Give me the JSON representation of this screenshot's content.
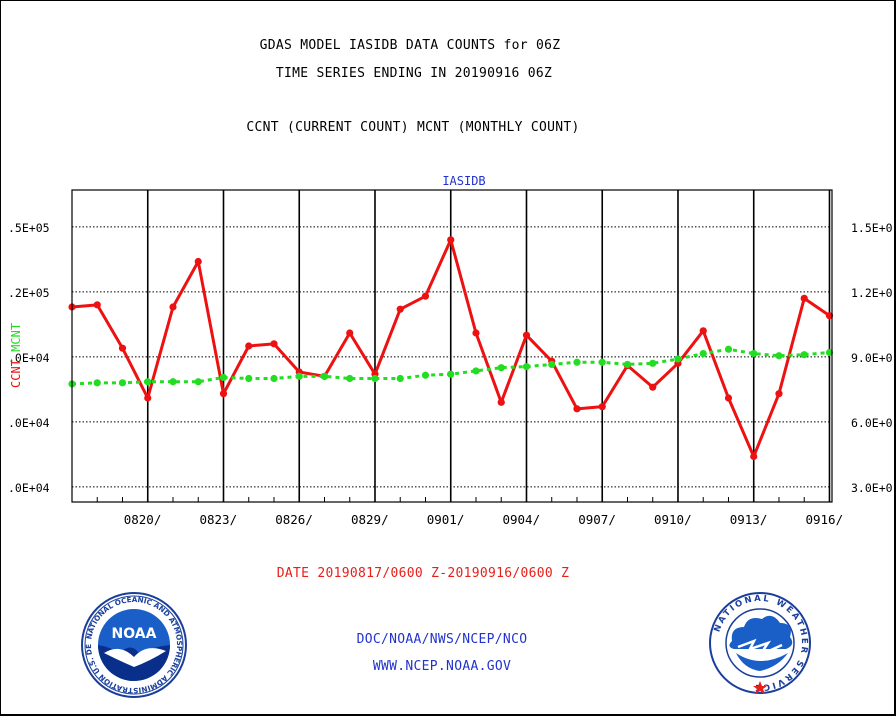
{
  "header": {
    "title_line1": "GDAS MODEL IASIDB DATA COUNTS for 06Z",
    "title_line2": "TIME SERIES ENDING IN 20190916 06Z",
    "subtitle": "CCNT (CURRENT COUNT) MCNT (MONTHLY COUNT)"
  },
  "footer": {
    "date_range": "DATE 20190817/0600 Z-20190916/0600 Z",
    "doc": "DOC/NOAA/NWS/NCEP/NCO",
    "website": "WWW.NCEP.NOAA.GOV"
  },
  "colors": {
    "ccnt": "#ee1111",
    "mcnt": "#22dd22",
    "panel_title": "#2233cc",
    "text": "#000000"
  },
  "logos": {
    "noaa": "NOAA",
    "noaa_ring": "NATIONAL OCEANIC AND ATMOSPHERIC ADMINISTRATION U.S. DEPARTMENT OF COMMERCE",
    "nws_ring": "NATIONAL WEATHER SERVICE"
  },
  "chart_data": {
    "type": "line",
    "panel_title": "IASIDB",
    "left_axis_label_ccnt": "CCNT",
    "left_axis_label_mcnt": "MCNT",
    "left_ticks": [
      ".0E+04",
      ".0E+04",
      ".2E+05",
      ".5E+05"
    ],
    "left_tick_values": [
      30000,
      60000,
      120000,
      150000
    ],
    "left_tick_extra": [
      ".0E+04"
    ],
    "right_ticks": [
      "3.0E+0",
      "6.0E+0",
      "9.0E+0",
      "1.2E+0",
      "1.5E+0"
    ],
    "right_tick_values": [
      30000,
      60000,
      90000,
      120000,
      150000
    ],
    "ylim": [
      23000,
      167000
    ],
    "x_start": "0817",
    "x_end": "0916",
    "x_tick_labels": [
      "0820/",
      "0823/",
      "0826/",
      "0829/",
      "0901/",
      "0904/",
      "0907/",
      "0910/",
      "0913/",
      "0916/"
    ],
    "x_tick_days": [
      3,
      6,
      9,
      12,
      15,
      18,
      21,
      24,
      27,
      30
    ],
    "xlim_days": [
      0,
      30.1
    ],
    "grid": true,
    "series": [
      {
        "name": "CCNT",
        "days": [
          0,
          1,
          2,
          3,
          4,
          5,
          6,
          7,
          8,
          9,
          10,
          11,
          12,
          13,
          14,
          15,
          16,
          17,
          18,
          19,
          20,
          21,
          22,
          23,
          24,
          25,
          26,
          27,
          28,
          29,
          30
        ],
        "values": [
          113000,
          114000,
          94000,
          71000,
          113000,
          134000,
          73000,
          95000,
          96000,
          83000,
          81000,
          101000,
          82000,
          112000,
          118000,
          144000,
          101000,
          69000,
          100000,
          88000,
          66000,
          67000,
          86000,
          76000,
          87000,
          102000,
          71000,
          44000,
          73000,
          117000,
          109000
        ]
      },
      {
        "name": "MCNT",
        "days": [
          0,
          1,
          2,
          3,
          4,
          5,
          6,
          7,
          8,
          9,
          10,
          11,
          12,
          13,
          14,
          15,
          16,
          17,
          18,
          19,
          20,
          21,
          22,
          23,
          24,
          25,
          26,
          27,
          28,
          29,
          30
        ],
        "values": [
          77500,
          78000,
          78000,
          78500,
          78500,
          78500,
          80500,
          80000,
          80000,
          81000,
          81000,
          80000,
          80000,
          80000,
          81500,
          82000,
          83500,
          85000,
          85500,
          86500,
          87500,
          87500,
          86500,
          87000,
          89000,
          91500,
          93500,
          91500,
          90500,
          91000,
          92000
        ]
      }
    ]
  }
}
